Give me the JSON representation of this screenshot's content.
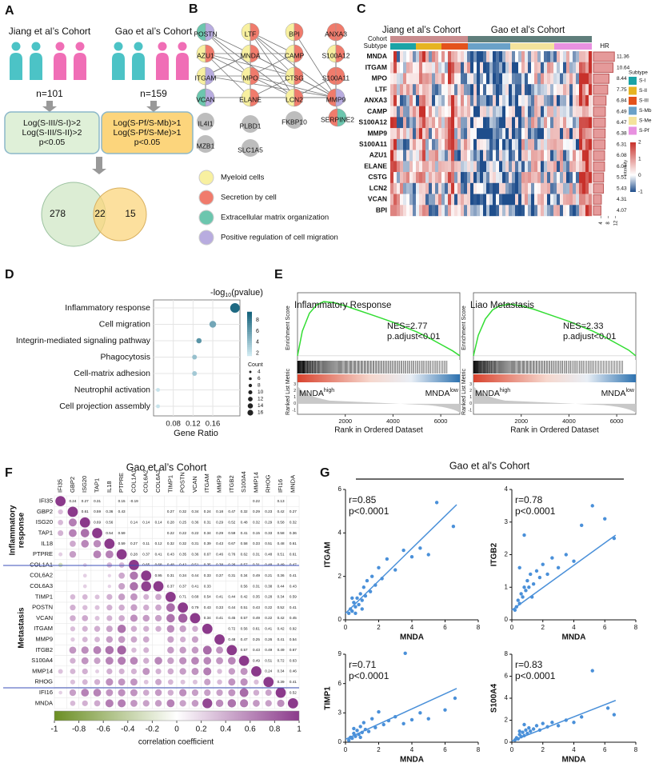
{
  "panels": {
    "A": {
      "label": "A",
      "cohort1": "Jiang et al’s Cohort",
      "cohort2": "Gao et al’s Cohort",
      "n1": "n=101",
      "n2": "n=159",
      "criteria1": [
        "Log(S-III/S-I)>2",
        "Log(S-III/S-II)>2",
        "p<0.05"
      ],
      "criteria2": [
        "Log(S-Pf/S-Mb)>1",
        "Log(S-Pf/S-Me)>1",
        "p<0.05"
      ],
      "venn": [
        278,
        22,
        15
      ]
    },
    "B": {
      "label": "B",
      "nodes": [
        "POSTN",
        "LTF",
        "BPI",
        "ANXA3",
        "AZU1",
        "MNDA",
        "CAMP",
        "S100A12",
        "ITGAM",
        "MPO",
        "CTSG",
        "S100A11",
        "VCAN",
        "ELANE",
        "LCN2",
        "MMP9",
        "SERPINE2",
        "IL4I1",
        "PLBD1",
        "FKBP10",
        "MZB1",
        "SLC1A5"
      ],
      "legend": [
        "Myeloid cells",
        "Secretion by cell",
        "Extracellular matrix organization",
        "Positive regulation of cell migration"
      ],
      "legend_colors": [
        "#f8f0a0",
        "#f07b6c",
        "#6cc6ae",
        "#b8acdf"
      ]
    },
    "C": {
      "label": "C",
      "cohorts": [
        "Jiang et al’s Cohort",
        "Gao et al’s Cohort"
      ],
      "row_labels": [
        "Cohort",
        "Subtype"
      ],
      "genes": [
        "MNDA",
        "ITGAM",
        "MPO",
        "LTF",
        "ANXA3",
        "CAMP",
        "S100A12",
        "MMP9",
        "S100A11",
        "AZU1",
        "ELANE",
        "CSTG",
        "LCN2",
        "VCAN",
        "BPI"
      ],
      "hr": [
        11.36,
        10.64,
        8.44,
        7.75,
        6.84,
        6.49,
        6.47,
        6.38,
        6.31,
        6.08,
        6.04,
        5.51,
        5.43,
        4.31,
        4.07
      ],
      "hr_label": "HR",
      "hr_xlim": [
        0,
        13
      ],
      "hr_ticks": [
        4,
        8,
        12
      ],
      "hr_color": "#e59a9a",
      "subtypes": {
        "title": "Subtype",
        "names": [
          "S-I",
          "S-II",
          "S-III",
          "S-Mb",
          "S-Me",
          "S-Pf"
        ],
        "colors": [
          "#1aa3a6",
          "#e6b422",
          "#e4521c",
          "#6aa1c8",
          "#f4e39c",
          "#e891e0"
        ]
      },
      "cohort_colors": [
        "#c98c8e",
        "#5f7e7b"
      ],
      "intensity": {
        "title": "intensity",
        "ticks": [
          2,
          1,
          0,
          -1
        ],
        "lim": [
          -1,
          2
        ]
      }
    },
    "D": {
      "label": "D",
      "title": [
        "-log",
        "10",
        "(pvalue)"
      ],
      "terms": [
        "Inflammatory response",
        "Cell migration",
        "Integrin-mediated signaling pathway",
        "Phagocytosis",
        "Cell-matrix adhesion",
        "Neutrophil activation",
        "Cell projection assembly"
      ],
      "gene_ratio": [
        0.205,
        0.16,
        0.132,
        0.123,
        0.123,
        0.049,
        0.049
      ],
      "count": [
        16,
        10,
        7,
        6,
        6,
        4,
        4
      ],
      "neg_log10_p": [
        9,
        5.5,
        6.5,
        4,
        3.5,
        2,
        2
      ],
      "xlim": [
        0.04,
        0.215
      ],
      "xticks": [
        0.08,
        0.12,
        0.16
      ],
      "xlabel": "Gene Ratio",
      "color_lim": [
        1.5,
        9.5
      ],
      "color_ticks": [
        8,
        6,
        4,
        2
      ],
      "count_title": "Count",
      "count_ticks": [
        4,
        6,
        8,
        10,
        12,
        14,
        16
      ]
    },
    "E": {
      "label": "E",
      "plots": [
        {
          "title": "Inflammatory Response",
          "nes": "NES=2.77",
          "padj": "p.adjust<0.01",
          "x": [
            0,
            200,
            500,
            800,
            1100,
            1500,
            2000,
            2500,
            3000,
            3500,
            4000,
            4500,
            5000,
            5500,
            6000,
            6500,
            6800
          ],
          "values": [
            0,
            0.3,
            0.52,
            0.62,
            0.66,
            0.65,
            0.61,
            0.56,
            0.51,
            0.46,
            0.41,
            0.35,
            0.29,
            0.22,
            0.14,
            0.06,
            0
          ]
        },
        {
          "title": "Liao Metastasis",
          "nes": "NES=2.33",
          "padj": "p.adjust<0.01",
          "x": [
            0,
            200,
            500,
            800,
            1100,
            1500,
            2000,
            2500,
            3000,
            3500,
            4000,
            4500,
            5000,
            5500,
            6000,
            6500,
            6800
          ],
          "values": [
            0,
            0.25,
            0.45,
            0.56,
            0.61,
            0.63,
            0.61,
            0.57,
            0.52,
            0.47,
            0.42,
            0.36,
            0.3,
            0.23,
            0.15,
            0.07,
            0
          ]
        }
      ],
      "ylabel_es": "Enrichment Score",
      "ylabel_metric": "Ranked List Metric",
      "xlabel": "Rank in Ordered Dataset",
      "xlim": [
        0,
        6800
      ],
      "xticks": [
        2000,
        4000,
        6000
      ],
      "ylim": [
        -0.05,
        0.75
      ],
      "metric_lim": [
        -1.5,
        3.2
      ],
      "metric_ticks": [
        3,
        2,
        1,
        0,
        -1
      ],
      "high_label": [
        "MNDA",
        "high"
      ],
      "low_label": [
        "MNDA",
        "low"
      ],
      "curve_color": "#33dd33"
    },
    "F": {
      "label": "F",
      "title": "Gao et al’s Cohort",
      "genes": [
        "IFI35",
        "GBP2",
        "ISG20",
        "TAP1",
        "IL18",
        "PTPRE",
        "COL1A1",
        "COL6A2",
        "COL6A3",
        "TIMP1",
        "POSTN",
        "VCAN",
        "ITGAM",
        "MMP9",
        "ITGB2",
        "S100A4",
        "MMP14",
        "RHOG",
        "IFI16",
        "MNDA"
      ],
      "values": [
        [
          0.24,
          0.27,
          0.31,
          null,
          0.15,
          -0.19,
          null,
          null,
          null,
          null,
          null,
          null,
          null,
          null,
          null,
          0.22,
          null,
          0.13,
          null
        ],
        [
          0.61,
          0.59,
          0.36,
          0.43,
          null,
          null,
          null,
          0.27,
          0.32,
          0.34,
          0.24,
          0.18,
          0.47,
          0.32,
          0.29,
          0.23,
          0.42,
          0.27
        ],
        [
          0.69,
          0.56,
          null,
          0.14,
          0.14,
          0.14,
          0.28,
          0.25,
          0.36,
          0.31,
          0.29,
          0.52,
          0.48,
          0.32,
          0.29,
          0.58,
          0.32
        ],
        [
          0.54,
          0.59,
          null,
          null,
          null,
          0.22,
          0.22,
          0.22,
          0.34,
          0.29,
          0.59,
          0.41,
          0.15,
          0.33,
          0.58,
          0.36
        ],
        [
          0.59,
          0.27,
          0.11,
          0.12,
          0.32,
          0.32,
          0.31,
          0.39,
          0.43,
          0.67,
          0.58,
          0.33,
          0.51,
          0.48,
          0.61
        ],
        [
          0.28,
          0.37,
          0.41,
          0.43,
          0.35,
          0.36,
          0.67,
          0.46,
          0.76,
          0.62,
          0.31,
          0.48,
          0.51,
          0.61
        ],
        [
          0.65,
          0.68,
          0.48,
          0.42,
          0.51,
          0.35,
          0.38,
          0.26,
          0.57,
          0.31,
          0.48,
          0.49,
          0.47
        ],
        [
          0.95,
          0.31,
          0.34,
          0.44,
          0.33,
          0.37,
          0.31,
          0.34,
          0.49,
          0.21,
          0.36,
          0.41
        ],
        [
          0.37,
          0.37,
          0.41,
          0.33,
          null,
          null,
          0.56,
          0.31,
          0.38,
          0.44,
          0.43
        ],
        [
          0.71,
          0.68,
          0.54,
          0.41,
          0.44,
          0.42,
          0.35,
          0.28,
          0.34,
          0.59
        ],
        [
          0.79,
          0.43,
          0.33,
          0.44,
          0.51,
          0.43,
          0.22,
          0.52,
          0.41
        ],
        [
          0.34,
          0.41,
          0.45,
          0.57,
          0.49,
          0.22,
          0.42,
          0.45
        ],
        [
          null,
          0.72,
          0.56,
          0.61,
          0.41,
          0.42,
          0.92
        ],
        [
          0.48,
          0.47,
          0.25,
          0.26,
          0.41,
          0.54
        ],
        [
          0.57,
          0.43,
          0.49,
          0.49,
          0.67
        ],
        [
          0.49,
          0.51,
          0.72,
          0.63
        ],
        [
          0.24,
          0.34,
          0.46
        ],
        [
          0.39,
          0.41
        ],
        [
          0.52
        ]
      ],
      "groups": [
        [
          "Inflammatory",
          "response"
        ],
        [
          "Metastasis"
        ]
      ],
      "colorbar": {
        "lim": [
          -1,
          1
        ],
        "ticks": [
          -1,
          -0.8,
          -0.6,
          -0.4,
          -0.2,
          0,
          0.2,
          0.4,
          0.6,
          0.8,
          1
        ],
        "label": "correlation coefficient"
      }
    },
    "G": {
      "label": "G",
      "title": "Gao et al's Cohort",
      "color": "#4a90d9",
      "line_color": "#4a90d9",
      "plots": [
        {
          "ylabel": "ITGAM",
          "xlabel": "MNDA",
          "r": "r=0.85",
          "p": "p<0.0001",
          "xlim": [
            0,
            8
          ],
          "xticks": [
            0,
            2,
            4,
            6,
            8
          ],
          "ylim": [
            0,
            6
          ],
          "yticks": [
            0,
            2,
            4,
            6
          ],
          "x": [
            0.2,
            0.3,
            0.4,
            0.5,
            0.6,
            0.7,
            0.8,
            0.9,
            1.0,
            1.1,
            1.2,
            1.3,
            1.5,
            1.6,
            1.8,
            2.0,
            2.2,
            2.5,
            3.0,
            3.5,
            4.0,
            4.5,
            5.0,
            5.5,
            6.5,
            0.4,
            0.6,
            1.0
          ],
          "y": [
            0.3,
            0.5,
            0.4,
            0.8,
            0.6,
            1.0,
            0.7,
            1.2,
            0.9,
            1.5,
            1.1,
            1.8,
            1.3,
            2.0,
            1.6,
            2.4,
            1.9,
            2.8,
            2.3,
            3.2,
            2.9,
            3.3,
            3.0,
            5.4,
            4.3,
            1.0,
            0.3,
            0.5
          ],
          "fit": [
            [
              0,
              0.3
            ],
            [
              6.7,
              5.3
            ]
          ]
        },
        {
          "ylabel": "ITGB2",
          "xlabel": "MNDA",
          "r": "r=0.78",
          "p": "p<0.0001",
          "xlim": [
            0,
            8
          ],
          "xticks": [
            0,
            2,
            4,
            6,
            8
          ],
          "ylim": [
            0,
            4
          ],
          "yticks": [
            0,
            1,
            2,
            3,
            4
          ],
          "x": [
            0.2,
            0.3,
            0.4,
            0.5,
            0.6,
            0.7,
            0.8,
            0.9,
            1.0,
            1.1,
            1.2,
            1.4,
            1.6,
            1.8,
            2.0,
            2.3,
            2.6,
            3.0,
            3.5,
            4.0,
            4.5,
            5.2,
            6.0,
            6.6,
            0.5,
            0.8,
            1.3
          ],
          "y": [
            0.3,
            0.4,
            0.6,
            0.5,
            0.8,
            0.7,
            1.0,
            0.9,
            1.2,
            1.0,
            1.4,
            1.1,
            1.5,
            1.3,
            1.7,
            1.4,
            1.9,
            1.6,
            2.0,
            1.8,
            2.9,
            3.5,
            3.1,
            2.5,
            1.6,
            2.6,
            0.7
          ],
          "fit": [
            [
              0,
              0.3
            ],
            [
              6.7,
              2.6
            ]
          ]
        },
        {
          "ylabel": "TIMP1",
          "xlabel": "MNDA",
          "r": "r=0.71",
          "p": "p<0.0001",
          "xlim": [
            0,
            8
          ],
          "xticks": [
            0,
            2,
            4,
            6,
            8
          ],
          "ylim": [
            0,
            9
          ],
          "yticks": [
            0,
            3,
            6,
            9
          ],
          "x": [
            0.2,
            0.3,
            0.4,
            0.5,
            0.6,
            0.7,
            0.8,
            0.9,
            1.0,
            1.1,
            1.2,
            1.4,
            1.6,
            1.8,
            2.0,
            2.3,
            2.6,
            3.0,
            3.5,
            4.0,
            4.5,
            5.0,
            6.0,
            6.6,
            0.5,
            0.9,
            3.6
          ],
          "y": [
            0.2,
            0.5,
            0.4,
            0.9,
            0.6,
            1.2,
            0.8,
            1.6,
            1.0,
            2.0,
            1.3,
            1.1,
            2.4,
            1.5,
            3.1,
            1.8,
            2.2,
            2.6,
            1.9,
            2.3,
            3.0,
            2.4,
            3.3,
            4.5,
            1.4,
            0.5,
            9.1
          ],
          "fit": [
            [
              0,
              0.3
            ],
            [
              6.7,
              5.5
            ]
          ]
        },
        {
          "ylabel": "S100A4",
          "xlabel": "MNDA",
          "r": "r=0.83",
          "p": "p<0.0001",
          "xlim": [
            0,
            8
          ],
          "xticks": [
            0,
            2,
            4,
            6,
            8
          ],
          "ylim": [
            0,
            8
          ],
          "yticks": [
            0,
            2,
            4,
            6,
            8
          ],
          "x": [
            0.2,
            0.3,
            0.4,
            0.5,
            0.6,
            0.7,
            0.8,
            0.9,
            1.0,
            1.1,
            1.2,
            1.4,
            1.6,
            1.8,
            2.0,
            2.3,
            2.6,
            3.0,
            3.5,
            4.0,
            4.5,
            5.2,
            6.2,
            6.6,
            0.5,
            0.8
          ],
          "y": [
            0.2,
            0.4,
            0.3,
            0.7,
            0.5,
            0.9,
            0.6,
            1.1,
            0.8,
            1.3,
            1.0,
            1.2,
            1.5,
            1.1,
            1.7,
            1.4,
            1.8,
            1.5,
            2.0,
            1.8,
            2.3,
            6.5,
            3.1,
            2.5,
            1.0,
            1.6
          ],
          "fit": [
            [
              0,
              0.1
            ],
            [
              6.7,
              3.8
            ]
          ]
        }
      ]
    }
  }
}
